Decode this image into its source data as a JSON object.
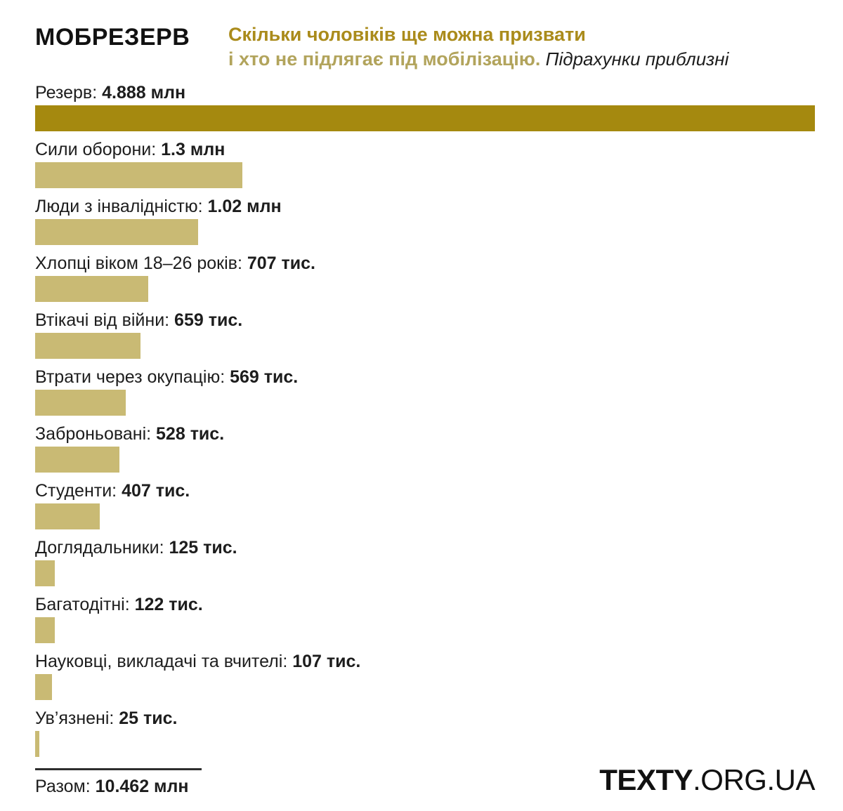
{
  "header": {
    "title": "МОБРЕЗЕРВ",
    "subtitle_line1": "Скільки чоловіків ще можна призвати",
    "subtitle_line2": "і хто не підлягає під мобілізацію.",
    "subtitle_note": " Підрахунки приблизні"
  },
  "colors": {
    "bar_primary": "#a5890f",
    "bar_secondary": "#c9ba74",
    "subtitle_strong": "#aa8b1b",
    "subtitle_soft": "#b2a45c",
    "text": "#1d1d1d"
  },
  "chart_data": {
    "type": "bar",
    "orientation": "horizontal",
    "title": "МОБРЕЗЕРВ — Скільки чоловіків ще можна призвати і хто не підлягає під мобілізацію. Підрахунки приблизні",
    "max_value_millions": 4.888,
    "bars": [
      {
        "label": "Резерв",
        "value_label": "4.888 млн",
        "value_millions": 4.888,
        "highlight": true
      },
      {
        "label": "Сили оборони",
        "value_label": "1.3 млн",
        "value_millions": 1.3,
        "highlight": false
      },
      {
        "label": "Люди з інвалідністю",
        "value_label": "1.02 млн",
        "value_millions": 1.02,
        "highlight": false
      },
      {
        "label": "Хлопці віком 18–26 років",
        "value_label": "707 тис.",
        "value_millions": 0.707,
        "highlight": false
      },
      {
        "label": "Втікачі від війни",
        "value_label": "659 тис.",
        "value_millions": 0.659,
        "highlight": false
      },
      {
        "label": "Втрати через окупацію",
        "value_label": "569 тис.",
        "value_millions": 0.569,
        "highlight": false
      },
      {
        "label": "Заброньовані",
        "value_label": "528 тис.",
        "value_millions": 0.528,
        "highlight": false
      },
      {
        "label": "Студенти",
        "value_label": "407 тис.",
        "value_millions": 0.407,
        "highlight": false
      },
      {
        "label": "Доглядальники",
        "value_label": "125 тис.",
        "value_millions": 0.125,
        "highlight": false
      },
      {
        "label": "Багатодітні",
        "value_label": "122 тис.",
        "value_millions": 0.122,
        "highlight": false
      },
      {
        "label": "Науковці, викладачі та вчителі",
        "value_label": "107 тис.",
        "value_millions": 0.107,
        "highlight": false
      },
      {
        "label": "Ув’язнені",
        "value_label": "25 тис.",
        "value_millions": 0.025,
        "highlight": false
      }
    ],
    "total": {
      "label": "Разом",
      "value_label": "10.462 млн"
    }
  },
  "footer": {
    "logo_bold": "TEXTY",
    "logo_regular": ".ORG.UA"
  }
}
